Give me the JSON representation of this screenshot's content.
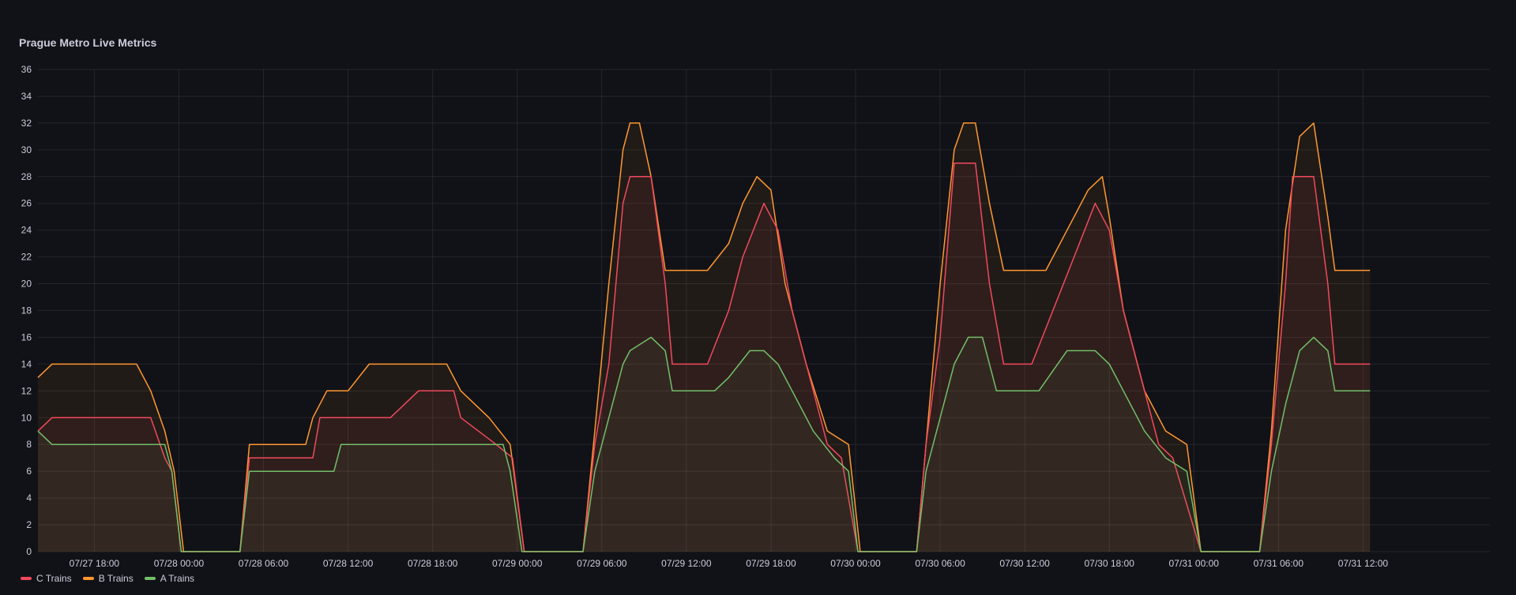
{
  "panel": {
    "title": "Prague Metro Live Metrics"
  },
  "chart_data": {
    "type": "area",
    "title": "Prague Metro Live Metrics",
    "xlabel": "",
    "ylabel": "",
    "ylim": [
      0,
      36
    ],
    "y_ticks": [
      "0",
      "2",
      "4",
      "6",
      "8",
      "10",
      "12",
      "14",
      "16",
      "18",
      "20",
      "22",
      "24",
      "26",
      "28",
      "30",
      "32",
      "34",
      "36"
    ],
    "x_range": [
      "2024-07-27T14:00",
      "2024-07-31T21:00"
    ],
    "x_ticks": [
      {
        "t": "2024-07-27T18:00",
        "label": "07/27 18:00"
      },
      {
        "t": "2024-07-28T00:00",
        "label": "07/28 00:00"
      },
      {
        "t": "2024-07-28T06:00",
        "label": "07/28 06:00"
      },
      {
        "t": "2024-07-28T12:00",
        "label": "07/28 12:00"
      },
      {
        "t": "2024-07-28T18:00",
        "label": "07/28 18:00"
      },
      {
        "t": "2024-07-29T00:00",
        "label": "07/29 00:00"
      },
      {
        "t": "2024-07-29T06:00",
        "label": "07/29 06:00"
      },
      {
        "t": "2024-07-29T12:00",
        "label": "07/29 12:00"
      },
      {
        "t": "2024-07-29T18:00",
        "label": "07/29 18:00"
      },
      {
        "t": "2024-07-30T00:00",
        "label": "07/30 00:00"
      },
      {
        "t": "2024-07-30T06:00",
        "label": "07/30 06:00"
      },
      {
        "t": "2024-07-30T12:00",
        "label": "07/30 12:00"
      },
      {
        "t": "2024-07-30T18:00",
        "label": "07/30 18:00"
      },
      {
        "t": "2024-07-31T00:00",
        "label": "07/31 00:00"
      },
      {
        "t": "2024-07-31T06:00",
        "label": "07/31 06:00"
      },
      {
        "t": "2024-07-31T12:00",
        "label": "07/31 12:00"
      }
    ],
    "grid": true,
    "legend_position": "bottom-left",
    "series": [
      {
        "name": "C Trains",
        "color": "#f2495c",
        "points": [
          [
            "2024-07-27T14:00",
            9
          ],
          [
            "2024-07-27T15:00",
            10
          ],
          [
            "2024-07-27T22:00",
            10
          ],
          [
            "2024-07-27T23:00",
            7
          ],
          [
            "2024-07-27T23:30",
            6
          ],
          [
            "2024-07-28T00:10",
            0
          ],
          [
            "2024-07-28T04:20",
            0
          ],
          [
            "2024-07-28T05:00",
            7
          ],
          [
            "2024-07-28T09:30",
            7
          ],
          [
            "2024-07-28T10:00",
            10
          ],
          [
            "2024-07-28T15:00",
            10
          ],
          [
            "2024-07-28T17:00",
            12
          ],
          [
            "2024-07-28T19:30",
            12
          ],
          [
            "2024-07-28T20:00",
            10
          ],
          [
            "2024-07-28T22:30",
            8
          ],
          [
            "2024-07-28T23:40",
            7
          ],
          [
            "2024-07-29T00:30",
            0
          ],
          [
            "2024-07-29T04:40",
            0
          ],
          [
            "2024-07-29T05:30",
            8
          ],
          [
            "2024-07-29T06:30",
            14
          ],
          [
            "2024-07-29T07:30",
            26
          ],
          [
            "2024-07-29T08:00",
            28
          ],
          [
            "2024-07-29T09:30",
            28
          ],
          [
            "2024-07-29T10:30",
            20
          ],
          [
            "2024-07-29T11:00",
            14
          ],
          [
            "2024-07-29T13:30",
            14
          ],
          [
            "2024-07-29T15:00",
            18
          ],
          [
            "2024-07-29T16:00",
            22
          ],
          [
            "2024-07-29T17:30",
            26
          ],
          [
            "2024-07-29T18:30",
            24
          ],
          [
            "2024-07-29T19:30",
            18
          ],
          [
            "2024-07-29T21:00",
            12
          ],
          [
            "2024-07-29T22:00",
            8
          ],
          [
            "2024-07-29T23:00",
            7
          ],
          [
            "2024-07-30T00:10",
            0
          ],
          [
            "2024-07-30T04:20",
            0
          ],
          [
            "2024-07-30T05:00",
            8
          ],
          [
            "2024-07-30T06:00",
            16
          ],
          [
            "2024-07-30T07:00",
            29
          ],
          [
            "2024-07-30T08:30",
            29
          ],
          [
            "2024-07-30T09:30",
            20
          ],
          [
            "2024-07-30T10:30",
            14
          ],
          [
            "2024-07-30T12:30",
            14
          ],
          [
            "2024-07-30T14:00",
            18
          ],
          [
            "2024-07-30T15:30",
            22
          ],
          [
            "2024-07-30T17:00",
            26
          ],
          [
            "2024-07-30T18:00",
            24
          ],
          [
            "2024-07-30T19:00",
            18
          ],
          [
            "2024-07-30T20:30",
            12
          ],
          [
            "2024-07-30T21:30",
            8
          ],
          [
            "2024-07-30T22:30",
            7
          ],
          [
            "2024-07-31T00:30",
            0
          ],
          [
            "2024-07-31T04:40",
            0
          ],
          [
            "2024-07-31T05:30",
            8
          ],
          [
            "2024-07-31T06:30",
            20
          ],
          [
            "2024-07-31T07:00",
            28
          ],
          [
            "2024-07-31T08:30",
            28
          ],
          [
            "2024-07-31T09:30",
            20
          ],
          [
            "2024-07-31T10:00",
            14
          ],
          [
            "2024-07-31T12:30",
            14
          ]
        ]
      },
      {
        "name": "B Trains",
        "color": "#ff9830",
        "points": [
          [
            "2024-07-27T14:00",
            13
          ],
          [
            "2024-07-27T15:00",
            14
          ],
          [
            "2024-07-27T21:00",
            14
          ],
          [
            "2024-07-27T22:00",
            12
          ],
          [
            "2024-07-27T23:00",
            9
          ],
          [
            "2024-07-27T23:40",
            6
          ],
          [
            "2024-07-28T00:20",
            0
          ],
          [
            "2024-07-28T04:20",
            0
          ],
          [
            "2024-07-28T05:00",
            8
          ],
          [
            "2024-07-28T09:00",
            8
          ],
          [
            "2024-07-28T09:30",
            10
          ],
          [
            "2024-07-28T10:30",
            12
          ],
          [
            "2024-07-28T12:00",
            12
          ],
          [
            "2024-07-28T13:30",
            14
          ],
          [
            "2024-07-28T19:00",
            14
          ],
          [
            "2024-07-28T20:00",
            12
          ],
          [
            "2024-07-28T22:00",
            10
          ],
          [
            "2024-07-28T23:30",
            8
          ],
          [
            "2024-07-29T00:30",
            0
          ],
          [
            "2024-07-29T04:40",
            0
          ],
          [
            "2024-07-29T05:30",
            9
          ],
          [
            "2024-07-29T06:30",
            20
          ],
          [
            "2024-07-29T07:30",
            30
          ],
          [
            "2024-07-29T08:00",
            32
          ],
          [
            "2024-07-29T08:40",
            32
          ],
          [
            "2024-07-29T09:30",
            28
          ],
          [
            "2024-07-29T10:30",
            21
          ],
          [
            "2024-07-29T13:30",
            21
          ],
          [
            "2024-07-29T15:00",
            23
          ],
          [
            "2024-07-29T16:00",
            26
          ],
          [
            "2024-07-29T17:00",
            28
          ],
          [
            "2024-07-29T18:00",
            27
          ],
          [
            "2024-07-29T19:00",
            20
          ],
          [
            "2024-07-29T20:30",
            14
          ],
          [
            "2024-07-29T22:00",
            9
          ],
          [
            "2024-07-29T23:30",
            8
          ],
          [
            "2024-07-30T00:20",
            0
          ],
          [
            "2024-07-30T04:20",
            0
          ],
          [
            "2024-07-30T05:00",
            8
          ],
          [
            "2024-07-30T06:00",
            20
          ],
          [
            "2024-07-30T07:00",
            30
          ],
          [
            "2024-07-30T07:40",
            32
          ],
          [
            "2024-07-30T08:30",
            32
          ],
          [
            "2024-07-30T09:30",
            26
          ],
          [
            "2024-07-30T10:30",
            21
          ],
          [
            "2024-07-30T13:30",
            21
          ],
          [
            "2024-07-30T15:00",
            24
          ],
          [
            "2024-07-30T16:30",
            27
          ],
          [
            "2024-07-30T17:30",
            28
          ],
          [
            "2024-07-30T18:00",
            25
          ],
          [
            "2024-07-30T19:00",
            18
          ],
          [
            "2024-07-30T20:30",
            12
          ],
          [
            "2024-07-30T22:00",
            9
          ],
          [
            "2024-07-30T23:30",
            8
          ],
          [
            "2024-07-31T00:30",
            0
          ],
          [
            "2024-07-31T04:40",
            0
          ],
          [
            "2024-07-31T05:30",
            9
          ],
          [
            "2024-07-31T06:30",
            24
          ],
          [
            "2024-07-31T07:30",
            31
          ],
          [
            "2024-07-31T08:30",
            32
          ],
          [
            "2024-07-31T09:30",
            25
          ],
          [
            "2024-07-31T10:00",
            21
          ],
          [
            "2024-07-31T12:30",
            21
          ]
        ]
      },
      {
        "name": "A Trains",
        "color": "#73bf69",
        "points": [
          [
            "2024-07-27T14:00",
            9
          ],
          [
            "2024-07-27T15:00",
            8
          ],
          [
            "2024-07-27T23:00",
            8
          ],
          [
            "2024-07-27T23:30",
            6
          ],
          [
            "2024-07-28T00:10",
            0
          ],
          [
            "2024-07-28T04:20",
            0
          ],
          [
            "2024-07-28T05:00",
            6
          ],
          [
            "2024-07-28T11:00",
            6
          ],
          [
            "2024-07-28T11:30",
            8
          ],
          [
            "2024-07-28T23:00",
            8
          ],
          [
            "2024-07-28T23:30",
            6
          ],
          [
            "2024-07-29T00:20",
            0
          ],
          [
            "2024-07-29T04:40",
            0
          ],
          [
            "2024-07-29T05:30",
            6
          ],
          [
            "2024-07-29T06:30",
            10
          ],
          [
            "2024-07-29T07:30",
            14
          ],
          [
            "2024-07-29T08:00",
            15
          ],
          [
            "2024-07-29T09:30",
            16
          ],
          [
            "2024-07-29T10:30",
            15
          ],
          [
            "2024-07-29T11:00",
            12
          ],
          [
            "2024-07-29T14:00",
            12
          ],
          [
            "2024-07-29T15:00",
            13
          ],
          [
            "2024-07-29T16:30",
            15
          ],
          [
            "2024-07-29T17:30",
            15
          ],
          [
            "2024-07-29T18:30",
            14
          ],
          [
            "2024-07-29T19:30",
            12
          ],
          [
            "2024-07-29T21:00",
            9
          ],
          [
            "2024-07-29T22:30",
            7
          ],
          [
            "2024-07-29T23:30",
            6
          ],
          [
            "2024-07-30T00:10",
            0
          ],
          [
            "2024-07-30T04:20",
            0
          ],
          [
            "2024-07-30T05:00",
            6
          ],
          [
            "2024-07-30T06:00",
            10
          ],
          [
            "2024-07-30T07:00",
            14
          ],
          [
            "2024-07-30T08:00",
            16
          ],
          [
            "2024-07-30T09:00",
            16
          ],
          [
            "2024-07-30T10:00",
            12
          ],
          [
            "2024-07-30T13:00",
            12
          ],
          [
            "2024-07-30T15:00",
            15
          ],
          [
            "2024-07-30T17:00",
            15
          ],
          [
            "2024-07-30T18:00",
            14
          ],
          [
            "2024-07-30T19:00",
            12
          ],
          [
            "2024-07-30T20:30",
            9
          ],
          [
            "2024-07-30T22:00",
            7
          ],
          [
            "2024-07-30T23:30",
            6
          ],
          [
            "2024-07-31T00:30",
            0
          ],
          [
            "2024-07-31T04:40",
            0
          ],
          [
            "2024-07-31T05:30",
            6
          ],
          [
            "2024-07-31T06:30",
            11
          ],
          [
            "2024-07-31T07:30",
            15
          ],
          [
            "2024-07-31T08:30",
            16
          ],
          [
            "2024-07-31T09:30",
            15
          ],
          [
            "2024-07-31T10:00",
            12
          ],
          [
            "2024-07-31T12:30",
            12
          ]
        ]
      }
    ]
  }
}
